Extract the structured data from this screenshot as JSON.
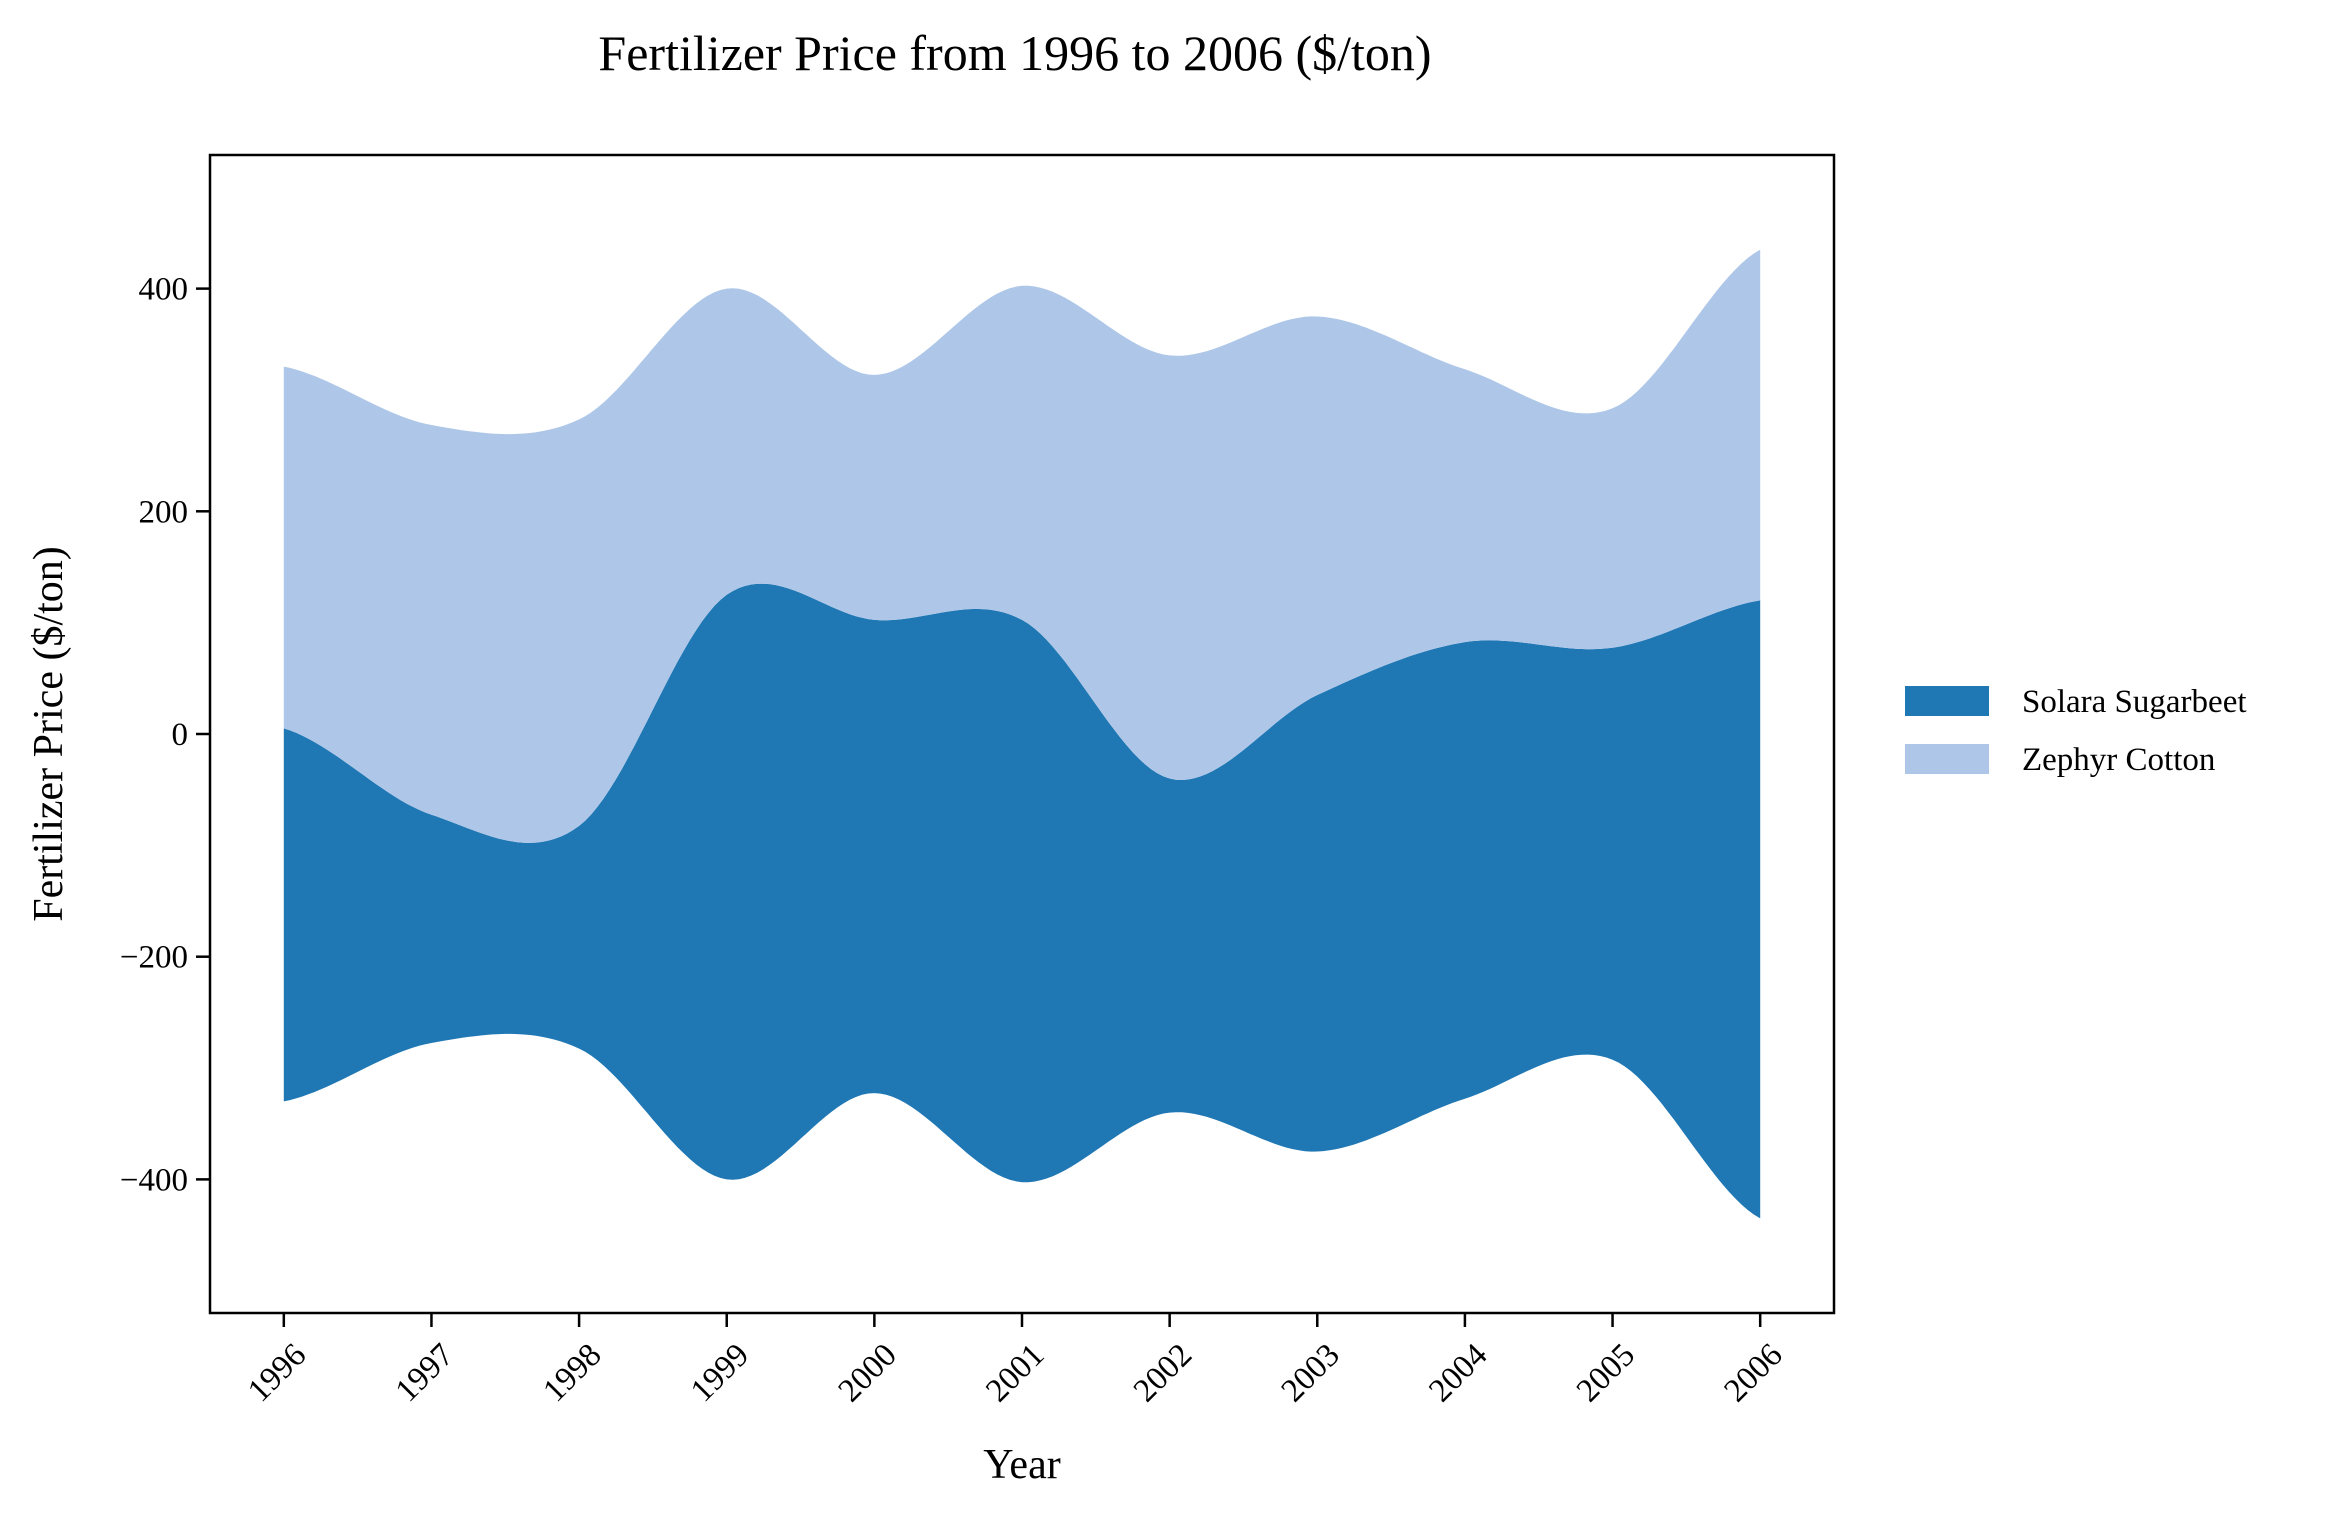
{
  "chart_data": {
    "type": "area",
    "subtype": "streamgraph",
    "title": "Fertilizer Price from 1996 to 2006 ($/ton)",
    "xlabel": "Year",
    "ylabel": "Fertilizer Price ($/ton)",
    "x": [
      1996,
      1997,
      1998,
      1999,
      2000,
      2001,
      2002,
      2003,
      2004,
      2005,
      2006
    ],
    "xtick_labels": [
      "1996",
      "1997",
      "1998",
      "1999",
      "2000",
      "2001",
      "2002",
      "2003",
      "2004",
      "2005",
      "2006"
    ],
    "yticks": [
      -400,
      -200,
      0,
      200,
      400
    ],
    "ytick_labels": [
      "−400",
      "−200",
      "0",
      "200",
      "400"
    ],
    "ylim": [
      -520,
      520
    ],
    "grid": false,
    "legend_position": "right",
    "series": [
      {
        "name": "Solara Sugarbeet",
        "color": "#1f77b4",
        "values": [
          335,
          205,
          200,
          525,
          425,
          505,
          300,
          410,
          410,
          370,
          555
        ]
      },
      {
        "name": "Zephyr Cotton",
        "color": "#aec7e8",
        "values": [
          325,
          350,
          365,
          275,
          220,
          300,
          380,
          340,
          245,
          215,
          315
        ]
      }
    ]
  }
}
